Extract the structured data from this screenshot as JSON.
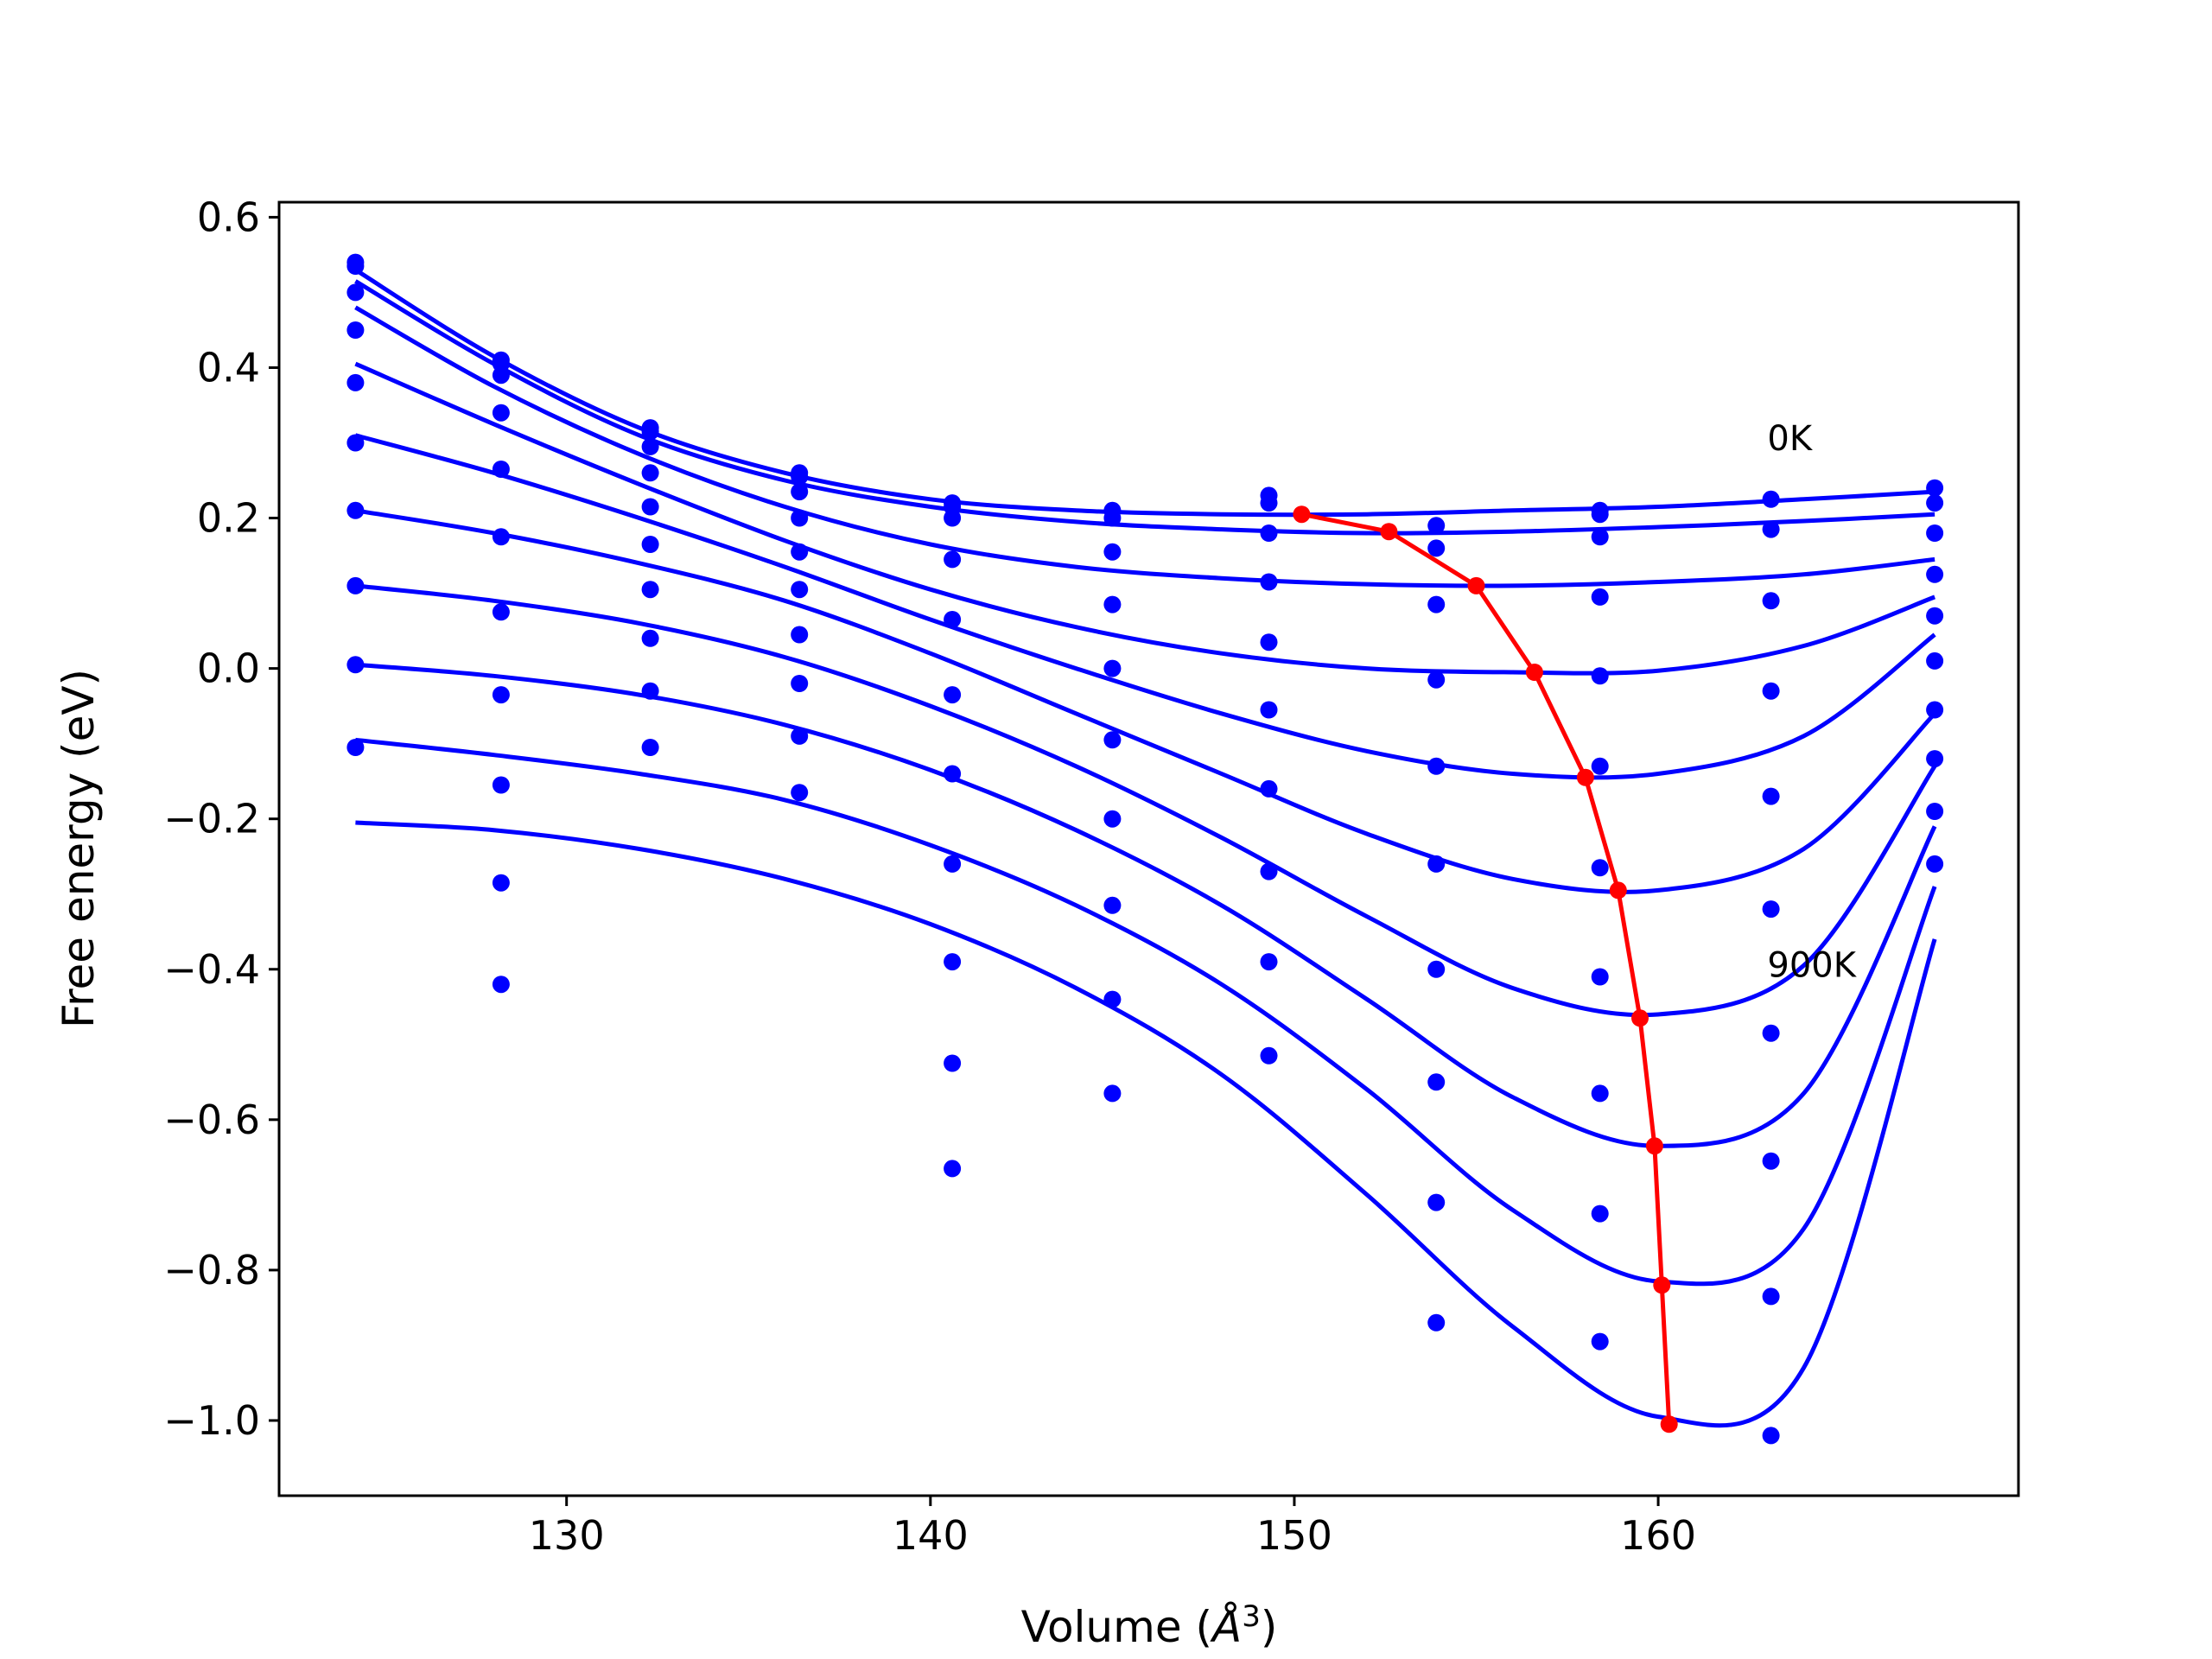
{
  "chart_data": {
    "type": "scatter+line",
    "xlabel": "Volume (Å³)",
    "xlabel_main": "Volume (",
    "xlabel_unit": "Å",
    "xlabel_exp": "3",
    "xlabel_close": ")",
    "ylabel": "Free energy (eV)",
    "xlim": [
      122.1,
      169.9
    ],
    "ylim": [
      -1.1,
      0.62
    ],
    "xticks": [
      130,
      140,
      150,
      160
    ],
    "yticks": [
      0.6,
      0.4,
      0.2,
      0.0,
      -0.2,
      -0.4,
      -0.6,
      -0.8,
      -1.0
    ],
    "xtick_labels": [
      "130",
      "140",
      "150",
      "160"
    ],
    "ytick_labels": [
      "0.6",
      "0.4",
      "0.2",
      "0.0",
      "−0.2",
      "−0.4",
      "−0.6",
      "−0.8",
      "−1.0"
    ],
    "annotations": [
      {
        "text": "0K",
        "x": 163.0,
        "y": 0.29
      },
      {
        "text": "900K",
        "x": 163.0,
        "y": -0.41
      }
    ],
    "grid": false,
    "colors": {
      "points": "#0000ff",
      "fits": "#0000ff",
      "minima": "#ff0000"
    },
    "volumes": [
      124.2,
      128.2,
      132.3,
      136.4,
      140.6,
      145.0,
      149.3,
      153.9,
      158.4,
      163.1,
      167.6
    ],
    "point_sets": [
      [
        0.54,
        0.41,
        0.32,
        0.26,
        0.22,
        0.21,
        0.23,
        0.19,
        0.21,
        0.225,
        0.24
      ],
      [
        0.535,
        0.405,
        0.315,
        0.255,
        0.215,
        0.2,
        0.22,
        0.16,
        0.175,
        0.185,
        0.22
      ],
      [
        0.5,
        0.39,
        0.295,
        0.235,
        0.2,
        0.155,
        0.18,
        0.085,
        0.205,
        0.09,
        0.18
      ],
      [
        0.45,
        0.34,
        0.26,
        0.2,
        0.145,
        0.085,
        0.115,
        -0.015,
        0.095,
        -0.03,
        0.125
      ],
      [
        0.38,
        0.265,
        0.215,
        0.155,
        0.065,
        0.0,
        0.035,
        -0.13,
        -0.01,
        -0.17,
        0.07
      ],
      [
        0.3,
        0.175,
        0.165,
        0.105,
        -0.035,
        -0.095,
        -0.055,
        -0.26,
        -0.13,
        -0.32,
        0.01
      ],
      [
        0.21,
        0.075,
        0.105,
        0.045,
        -0.14,
        -0.2,
        -0.16,
        -0.4,
        -0.265,
        -0.485,
        -0.055
      ],
      [
        0.11,
        -0.035,
        0.04,
        -0.02,
        -0.26,
        -0.315,
        -0.27,
        -0.55,
        -0.41,
        -0.655,
        -0.12
      ],
      [
        0.005,
        -0.155,
        -0.03,
        -0.09,
        -0.39,
        -0.44,
        -0.39,
        -0.71,
        -0.565,
        -0.835,
        -0.19
      ],
      [
        -0.105,
        -0.285,
        -0.105,
        -0.165,
        -0.525,
        -0.565,
        -0.515,
        -0.87,
        -0.725,
        -1.02,
        -0.26
      ],
      [
        null,
        -0.42,
        null,
        null,
        -0.665,
        null,
        null,
        null,
        -0.895,
        null,
        null
      ]
    ],
    "fit_curves": [
      {
        "x": [
          124.2,
          128,
          132,
          136,
          140,
          144,
          148,
          152,
          156,
          160,
          164,
          167.6
        ],
        "y": [
          0.53,
          0.415,
          0.32,
          0.26,
          0.225,
          0.21,
          0.205,
          0.205,
          0.21,
          0.215,
          0.225,
          0.235
        ]
      },
      {
        "x": [
          124.2,
          128,
          132,
          136,
          140,
          144,
          148,
          152,
          156,
          160,
          164,
          167.6
        ],
        "y": [
          0.515,
          0.405,
          0.31,
          0.25,
          0.215,
          0.195,
          0.185,
          0.18,
          0.182,
          0.188,
          0.196,
          0.205
        ]
      },
      {
        "x": [
          124.2,
          128,
          132,
          136,
          140,
          144,
          148,
          152,
          156,
          160,
          164,
          167.6
        ],
        "y": [
          0.48,
          0.375,
          0.285,
          0.215,
          0.165,
          0.135,
          0.12,
          0.112,
          0.11,
          0.115,
          0.125,
          0.145
        ]
      },
      {
        "x": [
          124.2,
          128,
          132,
          136,
          140,
          144,
          148,
          152,
          156,
          160,
          164,
          167.6
        ],
        "y": [
          0.405,
          0.325,
          0.245,
          0.17,
          0.105,
          0.055,
          0.02,
          0.0,
          -0.005,
          -0.003,
          0.03,
          0.095
        ]
      },
      {
        "x": [
          124.2,
          128,
          132,
          136,
          140,
          144,
          148,
          152,
          156,
          160,
          164,
          167.6
        ],
        "y": [
          0.31,
          0.26,
          0.2,
          0.135,
          0.065,
          0.0,
          -0.06,
          -0.11,
          -0.14,
          -0.14,
          -0.09,
          0.045
        ]
      },
      {
        "x": [
          124.2,
          128,
          132,
          136,
          140,
          144,
          148,
          152,
          156,
          160,
          164,
          167.6
        ],
        "y": [
          0.21,
          0.18,
          0.14,
          0.09,
          0.02,
          -0.06,
          -0.14,
          -0.22,
          -0.28,
          -0.295,
          -0.24,
          -0.06
        ]
      },
      {
        "x": [
          124.2,
          128,
          132,
          136,
          140,
          144,
          148,
          152,
          156,
          160,
          164,
          167.6
        ],
        "y": [
          0.11,
          0.09,
          0.06,
          0.015,
          -0.05,
          -0.13,
          -0.225,
          -0.33,
          -0.425,
          -0.46,
          -0.395,
          -0.13
        ]
      },
      {
        "x": [
          124.2,
          128,
          132,
          136,
          140,
          144,
          148,
          152,
          156,
          160,
          164,
          167.6
        ],
        "y": [
          0.005,
          -0.01,
          -0.035,
          -0.075,
          -0.135,
          -0.215,
          -0.315,
          -0.44,
          -0.57,
          -0.635,
          -0.565,
          -0.21
        ]
      },
      {
        "x": [
          124.2,
          128,
          132,
          136,
          140,
          144,
          148,
          152,
          156,
          160,
          164,
          167.6
        ],
        "y": [
          -0.095,
          -0.115,
          -0.14,
          -0.175,
          -0.235,
          -0.315,
          -0.42,
          -0.56,
          -0.72,
          -0.815,
          -0.745,
          -0.29
        ]
      },
      {
        "x": [
          124.2,
          128,
          132,
          136,
          140,
          144,
          148,
          152,
          156,
          160,
          164,
          167.6
        ],
        "y": [
          -0.205,
          -0.215,
          -0.24,
          -0.28,
          -0.34,
          -0.425,
          -0.54,
          -0.7,
          -0.875,
          -0.995,
          -0.93,
          -0.36
        ]
      }
    ],
    "minima": {
      "x": [
        150.2,
        152.6,
        155.0,
        156.6,
        158.0,
        158.9,
        159.5,
        159.9,
        160.1,
        160.3
      ],
      "y": [
        0.205,
        0.182,
        0.11,
        -0.005,
        -0.145,
        -0.295,
        -0.465,
        -0.635,
        -0.82,
        -1.005
      ]
    }
  }
}
